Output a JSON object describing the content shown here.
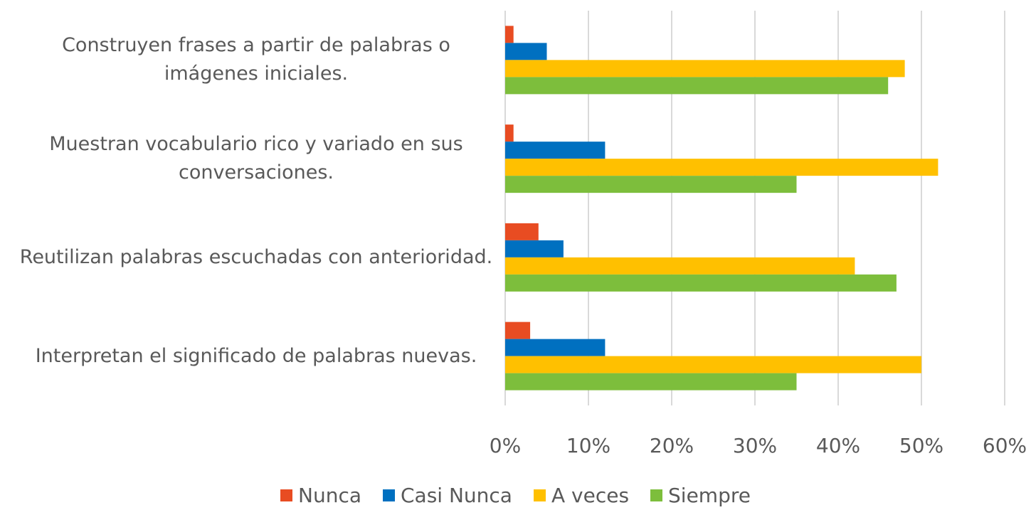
{
  "chart_data": {
    "type": "hbar",
    "categories": [
      "Construyen frases a partir de palabras o imágenes iniciales.",
      "Muestran vocabulario rico y variado en sus conversaciones.",
      "Reutilizan palabras escuchadas con anterioridad.",
      "Interpretan el significado de palabras nuevas."
    ],
    "series": [
      {
        "name": "Nunca",
        "color": "#E84C22",
        "values": [
          1,
          1,
          4,
          3
        ]
      },
      {
        "name": "Casi Nunca",
        "color": "#0070C0",
        "values": [
          5,
          12,
          7,
          12
        ]
      },
      {
        "name": "A veces",
        "color": "#FFC000",
        "values": [
          48,
          52,
          42,
          50
        ]
      },
      {
        "name": "Siempre",
        "color": "#7DBE3C",
        "values": [
          46,
          35,
          47,
          35
        ]
      }
    ],
    "xlim": [
      0,
      60
    ],
    "xticks": [
      {
        "value": 0,
        "label": "0%"
      },
      {
        "value": 10,
        "label": "10%"
      },
      {
        "value": 20,
        "label": "20%"
      },
      {
        "value": 30,
        "label": "30%"
      },
      {
        "value": 40,
        "label": "40%"
      },
      {
        "value": 50,
        "label": "50%"
      },
      {
        "value": 60,
        "label": "60%"
      }
    ],
    "grid": true,
    "legend": "bottom"
  }
}
